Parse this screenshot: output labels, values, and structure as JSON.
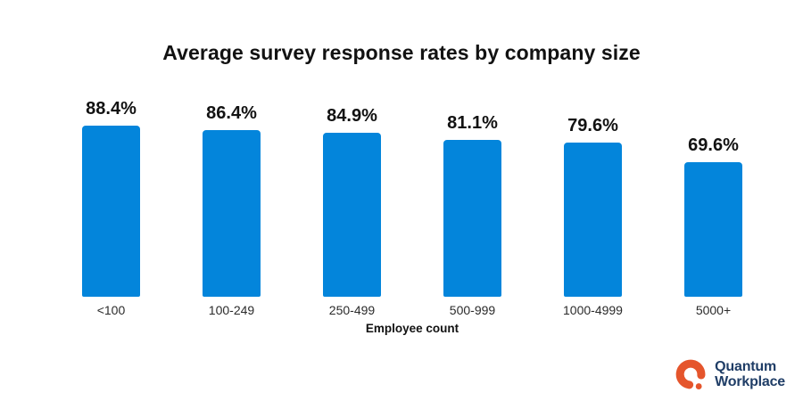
{
  "title": "Average survey response rates by company size",
  "chart_data": {
    "type": "bar",
    "title": "Average survey response rates by company size",
    "categories": [
      "<100",
      "100-249",
      "250-499",
      "500-999",
      "1000-4999",
      "5000+"
    ],
    "values": [
      88.4,
      86.4,
      84.9,
      81.1,
      79.6,
      69.6
    ],
    "value_labels": [
      "88.4%",
      "86.4%",
      "84.9%",
      "81.1%",
      "79.6%",
      "69.6%"
    ],
    "xlabel": "Employee count",
    "ylabel": "",
    "ylim": [
      0,
      100
    ],
    "grid": false,
    "legend": "none",
    "bar_color": "#0385db",
    "label_color": "#121212"
  },
  "footer": {
    "logo": {
      "icon": "quantum-workplace-q-mark",
      "line1": "Quantum",
      "line2": "Workplace",
      "orange": "#e5552c",
      "navy": "#1f3d66"
    }
  }
}
